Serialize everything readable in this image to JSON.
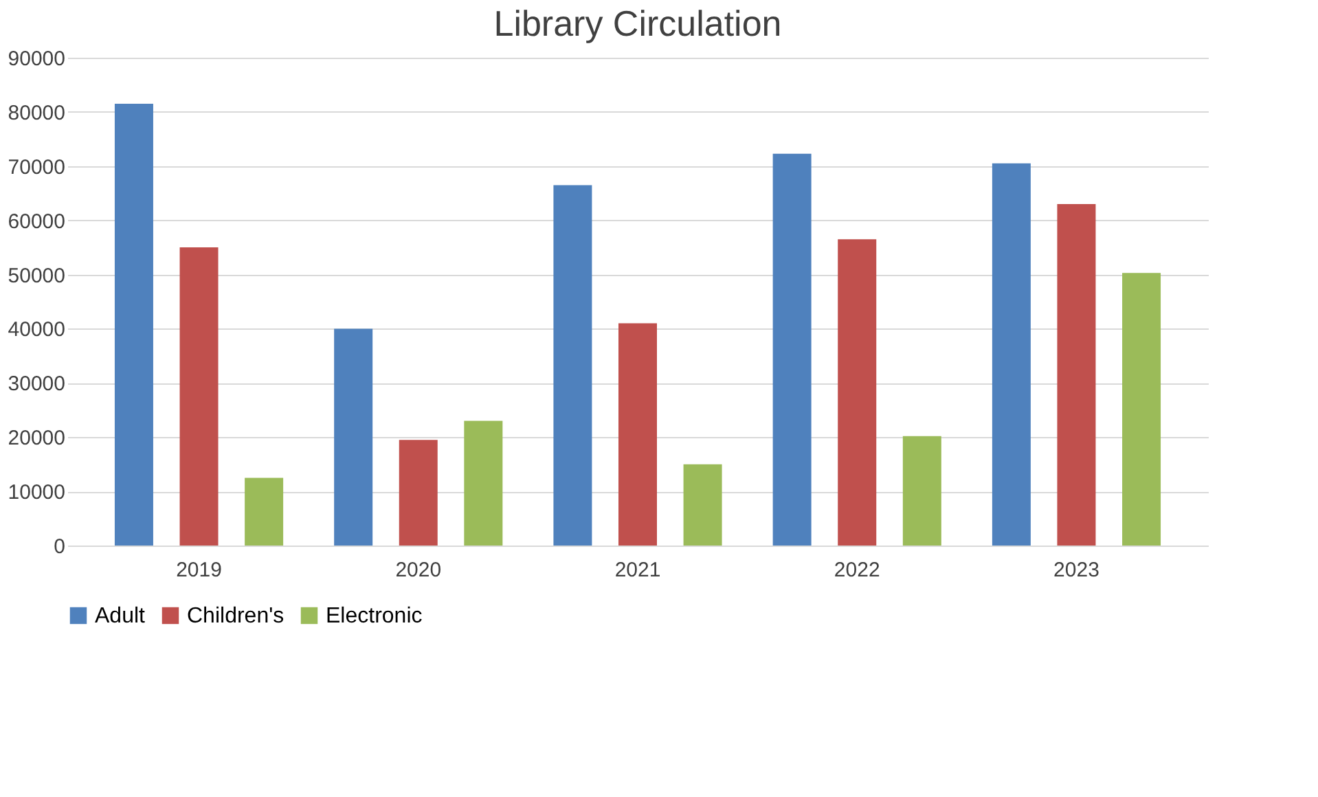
{
  "chart_data": {
    "type": "bar",
    "title": "Library Circulation",
    "categories": [
      "2019",
      "2020",
      "2021",
      "2022",
      "2023"
    ],
    "series": [
      {
        "name": "Adult",
        "color": "#4f81bd",
        "values": [
          81500,
          40000,
          66500,
          72300,
          70500
        ]
      },
      {
        "name": "Children's",
        "color": "#c0504d",
        "values": [
          55000,
          19500,
          41000,
          56500,
          63000
        ]
      },
      {
        "name": "Electronic",
        "color": "#9bbb59",
        "values": [
          12500,
          23000,
          15000,
          20200,
          50300
        ]
      }
    ],
    "ylim": [
      0,
      90000
    ],
    "yticks": [
      0,
      10000,
      20000,
      30000,
      40000,
      50000,
      60000,
      70000,
      80000,
      90000
    ],
    "grid": "y",
    "legend": "bottom"
  }
}
